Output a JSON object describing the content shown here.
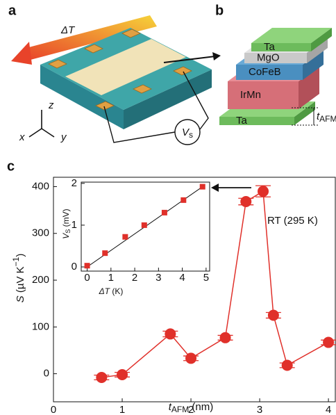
{
  "panels": {
    "a": "a",
    "b": "b",
    "c": "c",
    "delta_t": "ΔT",
    "axes": {
      "z": "z",
      "x": "x",
      "y": "y"
    },
    "voltage": {
      "symbol": "V",
      "subscript": "s"
    },
    "layers": [
      "Ta",
      "MgO",
      "CoFeB",
      "IrMn",
      "Ta"
    ],
    "thickness": {
      "symbol": "t",
      "subscript": "AFM"
    }
  },
  "chart_data": [
    {
      "type": "scatter",
      "xlabel": {
        "symbol": "t",
        "subscript": "AFM",
        "unit": "(nm)"
      },
      "ylabel": {
        "symbol": "S",
        "unit": "(µV K",
        "exponent": "−1",
        "close": ")"
      },
      "annotation": "RT (295 K)",
      "color": "#e0302a",
      "x": [
        0.7,
        1.0,
        1.7,
        2.0,
        2.5,
        2.8,
        3.05,
        3.2,
        3.4,
        4.0
      ],
      "values": [
        -8,
        -2,
        85,
        33,
        77,
        368,
        390,
        125,
        18,
        67
      ],
      "errors": [
        5,
        5,
        6,
        5,
        5,
        7,
        12,
        6,
        5,
        5
      ],
      "xlim": [
        0,
        4.1
      ],
      "ylim": [
        -60,
        420
      ],
      "xticks": [
        0,
        1,
        2,
        3,
        4
      ],
      "yticks": [
        0,
        100,
        200,
        300,
        400
      ]
    },
    {
      "type": "scatter-fit",
      "xlabel": {
        "symbol": "ΔT",
        "unit": "(K)"
      },
      "ylabel": {
        "symbol": "V",
        "subscript": "S",
        "unit": "(mV)"
      },
      "color": "#e0302a",
      "x": [
        0,
        0.75,
        1.6,
        2.4,
        3.25,
        4.05,
        4.85
      ],
      "values": [
        0.03,
        0.33,
        0.72,
        1.0,
        1.3,
        1.6,
        1.92
      ],
      "fit": {
        "x": [
          0,
          4.9
        ],
        "values": [
          0,
          1.94
        ]
      },
      "xlim": [
        -0.25,
        5.15
      ],
      "ylim": [
        -0.1,
        2.03
      ],
      "xticks": [
        0,
        1,
        2,
        3,
        4,
        5
      ],
      "yticks": [
        0,
        1,
        2
      ]
    }
  ]
}
